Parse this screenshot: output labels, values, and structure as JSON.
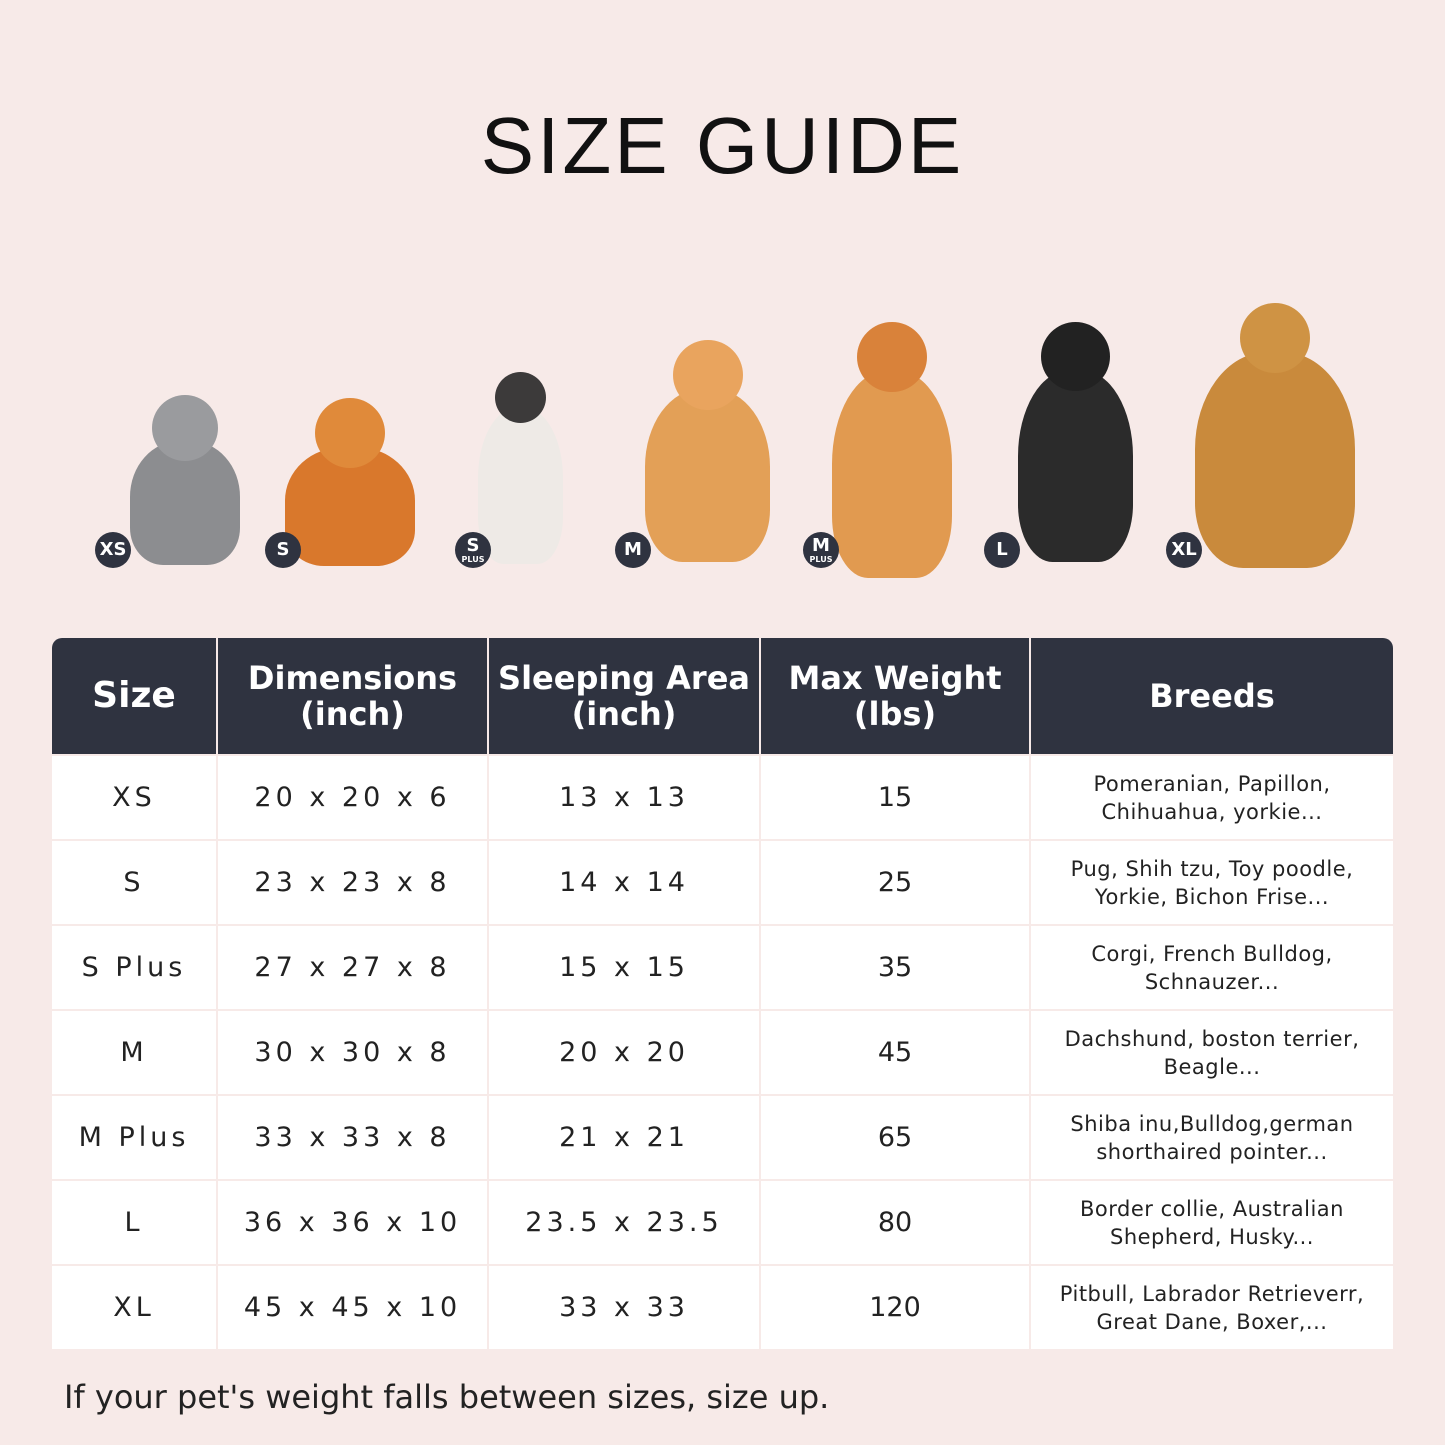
{
  "title": "SIZE GUIDE",
  "colors": {
    "background": "#f7eae8",
    "header": "#2f3340",
    "cell": "#ffffff"
  },
  "pets": [
    {
      "badge": "XS",
      "sub": "",
      "animal": "british-shorthair-cat"
    },
    {
      "badge": "S",
      "sub": "",
      "animal": "pomeranian"
    },
    {
      "badge": "S",
      "sub": "PLUS",
      "animal": "french-bulldog"
    },
    {
      "badge": "M",
      "sub": "",
      "animal": "corgi"
    },
    {
      "badge": "M",
      "sub": "PLUS",
      "animal": "shiba-inu"
    },
    {
      "badge": "L",
      "sub": "",
      "animal": "border-collie"
    },
    {
      "badge": "XL",
      "sub": "",
      "animal": "golden-retriever"
    }
  ],
  "table": {
    "headers": [
      {
        "line1": "Size",
        "line2": ""
      },
      {
        "line1": "Dimensions",
        "line2": "(inch)"
      },
      {
        "line1": "Sleeping Area",
        "line2": "(inch)"
      },
      {
        "line1": "Max Weight",
        "line2": "(lbs)"
      },
      {
        "line1": "Breeds",
        "line2": ""
      }
    ],
    "rows": [
      {
        "size": "XS",
        "dimensions": "20 x 20 x 6",
        "sleeping": "13 x 13",
        "weight": "15",
        "breeds1": "Pomeranian, Papillon,",
        "breeds2": "Chihuahua, yorkie..."
      },
      {
        "size": "S",
        "dimensions": "23 x 23 x 8",
        "sleeping": "14 x 14",
        "weight": "25",
        "breeds1": "Pug, Shih tzu, Toy poodle,",
        "breeds2": "Yorkie, Bichon Frise..."
      },
      {
        "size": "S Plus",
        "dimensions": "27 x 27 x 8",
        "sleeping": "15 x 15",
        "weight": "35",
        "breeds1": "Corgi, French Bulldog,",
        "breeds2": "Schnauzer..."
      },
      {
        "size": "M",
        "dimensions": "30 x 30 x 8",
        "sleeping": "20 x 20",
        "weight": "45",
        "breeds1": "Dachshund, boston terrier,",
        "breeds2": "Beagle..."
      },
      {
        "size": "M Plus",
        "dimensions": "33 x 33 x 8",
        "sleeping": "21 x 21",
        "weight": "65",
        "breeds1": "Shiba inu,Bulldog,german",
        "breeds2": "shorthaired pointer..."
      },
      {
        "size": "L",
        "dimensions": "36 x 36 x 10",
        "sleeping": "23.5 x 23.5",
        "weight": "80",
        "breeds1": "Border collie, Australian",
        "breeds2": "Shepherd, Husky..."
      },
      {
        "size": "XL",
        "dimensions": "45 x 45 x 10",
        "sleeping": "33 x 33",
        "weight": "120",
        "breeds1": "Pitbull, Labrador Retrieverr,",
        "breeds2": "Great Dane, Boxer,..."
      }
    ]
  },
  "note": "If your pet's weight falls between sizes, size up."
}
